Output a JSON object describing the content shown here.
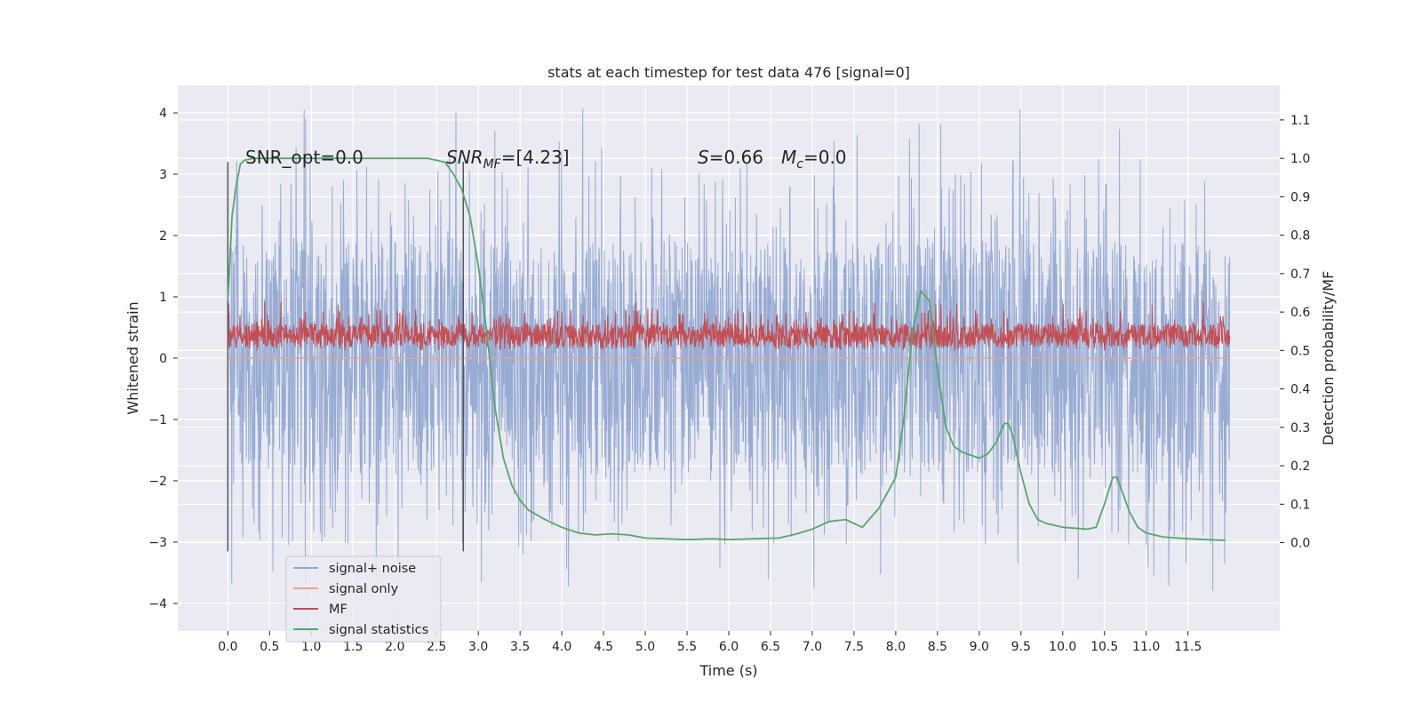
{
  "chart_data": {
    "type": "line",
    "title": "stats at each timestep for test data 476 [signal=0]",
    "xlabel": "Time (s)",
    "ylabel": "Whitened strain",
    "y2label": "Detection probability/MF",
    "xlim": [
      -0.6,
      12.6
    ],
    "ylim": [
      -4.45,
      4.45
    ],
    "y2lim": [
      -0.23,
      1.19
    ],
    "xticks": [
      0.0,
      0.5,
      1.0,
      1.5,
      2.0,
      2.5,
      3.0,
      3.5,
      4.0,
      4.5,
      5.0,
      5.5,
      6.0,
      6.5,
      7.0,
      7.5,
      8.0,
      8.5,
      9.0,
      9.5,
      10.0,
      10.5,
      11.0,
      11.5
    ],
    "xtick_labels": [
      "0.0",
      "0.5",
      "1.0",
      "1.5",
      "2.0",
      "2.5",
      "3.0",
      "3.5",
      "4.0",
      "4.5",
      "5.0",
      "5.5",
      "6.0",
      "6.5",
      "7.0",
      "7.5",
      "8.0",
      "8.5",
      "9.0",
      "9.5",
      "10.0",
      "10.5",
      "11.0",
      "11.5"
    ],
    "yticks": [
      -4,
      -3,
      -2,
      -1,
      0,
      1,
      2,
      3,
      4
    ],
    "ytick_labels": [
      "−4",
      "−3",
      "−2",
      "−1",
      "0",
      "1",
      "2",
      "3",
      "4"
    ],
    "y2ticks": [
      0.0,
      0.1,
      0.2,
      0.3,
      0.4,
      0.5,
      0.6,
      0.7,
      0.8,
      0.9,
      1.0,
      1.1
    ],
    "y2tick_labels": [
      "0.0",
      "0.1",
      "0.2",
      "0.3",
      "0.4",
      "0.5",
      "0.6",
      "0.7",
      "0.8",
      "0.9",
      "1.0",
      "1.1"
    ],
    "grid": true,
    "legend_position": "bottom-left",
    "annotations": {
      "snr_opt": "SNR_opt=0.0",
      "snr_mf_base": "SNR",
      "snr_mf_sub": "MF",
      "snr_mf_value": "=[4.23]",
      "s_symbol": "S",
      "s_value": "=0.66",
      "mc_base": "M",
      "mc_sub": "c",
      "mc_value": "=0.0"
    },
    "vertical_markers_x": [
      0.0,
      2.82
    ],
    "vertical_marker_range": [
      -3.15,
      3.2
    ],
    "series": [
      {
        "name": "signal+ noise",
        "color": "#92a8d1",
        "axis": "left",
        "kind": "noise",
        "x_range": [
          0.0,
          12.0
        ],
        "band_upper": 1.9,
        "band_lower": -1.9,
        "peak_max": 4.1,
        "trough_min": -3.85
      },
      {
        "name": "signal only",
        "color": "#e8a48a",
        "axis": "left",
        "kind": "flat",
        "x_range": [
          0.0,
          12.0
        ],
        "value": 0.0
      },
      {
        "name": "MF",
        "color": "#c44e52",
        "axis": "right",
        "kind": "noise",
        "x_range": [
          0.0,
          12.0
        ],
        "band_upper": 0.57,
        "band_lower": 0.51,
        "peak_max": 0.63,
        "trough_min": 0.5
      },
      {
        "name": "signal statistics",
        "color": "#55a868",
        "axis": "right",
        "kind": "line",
        "x": [
          0.0,
          0.05,
          0.1,
          0.15,
          0.2,
          0.3,
          0.5,
          1.0,
          1.5,
          2.0,
          2.4,
          2.6,
          2.7,
          2.8,
          2.9,
          3.0,
          3.1,
          3.2,
          3.3,
          3.4,
          3.5,
          3.6,
          3.8,
          4.0,
          4.2,
          4.4,
          4.6,
          4.8,
          5.0,
          5.5,
          5.8,
          6.0,
          6.3,
          6.6,
          6.8,
          7.0,
          7.2,
          7.4,
          7.6,
          7.8,
          7.9,
          8.0,
          8.1,
          8.2,
          8.3,
          8.4,
          8.5,
          8.6,
          8.7,
          8.8,
          9.0,
          9.1,
          9.2,
          9.3,
          9.35,
          9.4,
          9.5,
          9.6,
          9.7,
          9.8,
          10.0,
          10.3,
          10.4,
          10.5,
          10.6,
          10.65,
          10.7,
          10.8,
          10.9,
          11.0,
          11.2,
          11.5,
          11.8,
          11.95
        ],
        "values": [
          0.63,
          0.85,
          0.93,
          0.985,
          0.995,
          1.0,
          1.0,
          1.0,
          1.0,
          1.0,
          1.0,
          0.99,
          0.96,
          0.92,
          0.85,
          0.72,
          0.55,
          0.35,
          0.22,
          0.15,
          0.11,
          0.085,
          0.06,
          0.04,
          0.025,
          0.02,
          0.023,
          0.02,
          0.012,
          0.008,
          0.01,
          0.008,
          0.01,
          0.012,
          0.022,
          0.035,
          0.055,
          0.06,
          0.04,
          0.09,
          0.13,
          0.17,
          0.33,
          0.55,
          0.655,
          0.63,
          0.45,
          0.3,
          0.25,
          0.235,
          0.22,
          0.23,
          0.26,
          0.31,
          0.31,
          0.28,
          0.18,
          0.1,
          0.06,
          0.05,
          0.04,
          0.035,
          0.04,
          0.1,
          0.17,
          0.17,
          0.14,
          0.08,
          0.04,
          0.025,
          0.015,
          0.01,
          0.007,
          0.006
        ]
      }
    ]
  }
}
